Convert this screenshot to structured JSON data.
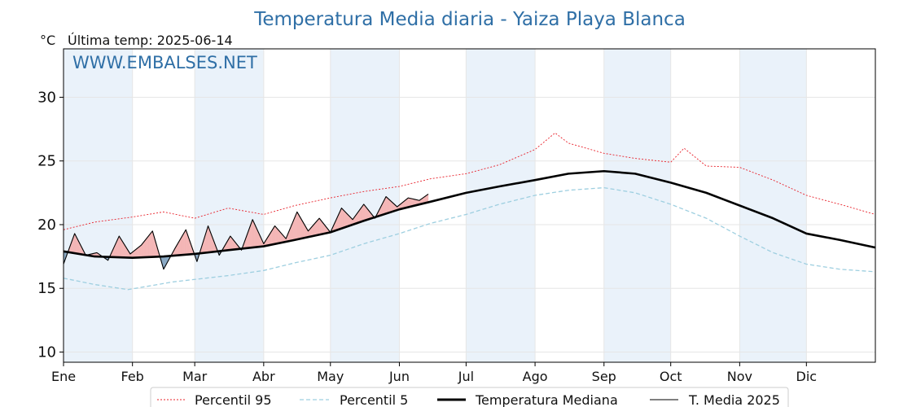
{
  "chart_data": {
    "type": "line",
    "title": "Temperatura Media diaria - Yaiza Playa Blanca",
    "unit_label": "°C",
    "last_temp_label": "Última temp: 2025-06-14",
    "watermark": "WWW.EMBALSES.NET",
    "ylim": [
      9.2,
      33.8
    ],
    "yticks": [
      10,
      15,
      20,
      25,
      30
    ],
    "xlim": [
      1,
      366
    ],
    "months": [
      {
        "label": "Ene",
        "day": 1
      },
      {
        "label": "Feb",
        "day": 32
      },
      {
        "label": "Mar",
        "day": 60
      },
      {
        "label": "Abr",
        "day": 91
      },
      {
        "label": "May",
        "day": 121
      },
      {
        "label": "Jun",
        "day": 152
      },
      {
        "label": "Jul",
        "day": 182
      },
      {
        "label": "Ago",
        "day": 213
      },
      {
        "label": "Sep",
        "day": 244
      },
      {
        "label": "Oct",
        "day": 274
      },
      {
        "label": "Nov",
        "day": 305
      },
      {
        "label": "Dic",
        "day": 335
      }
    ],
    "shaded_month_indices": [
      0,
      2,
      4,
      6,
      8,
      10
    ],
    "legend_position": "bottom",
    "colors": {
      "p95": "#e8202a",
      "p5": "#9ecfe0",
      "median": "#000000",
      "current": "#000000",
      "above_fill": "#f4b6b6",
      "below_fill": "#8aa9c4",
      "title": "#2f6fa6",
      "month_band": "#eaf2fa",
      "grid": "#e6e6e6"
    },
    "series": [
      {
        "key": "p95",
        "name": "Percentil 95",
        "style": "dotted",
        "x": [
          1,
          15,
          32,
          46,
          60,
          75,
          91,
          105,
          121,
          136,
          152,
          166,
          182,
          197,
          213,
          222,
          228,
          244,
          258,
          274,
          280,
          290,
          305,
          320,
          335,
          350,
          366
        ],
        "y": [
          19.6,
          20.2,
          20.6,
          21.0,
          20.5,
          21.3,
          20.8,
          21.5,
          22.1,
          22.6,
          23.0,
          23.6,
          24.0,
          24.7,
          25.9,
          27.2,
          26.4,
          25.6,
          25.2,
          24.9,
          26.0,
          24.6,
          24.5,
          23.5,
          22.3,
          21.6,
          20.8
        ]
      },
      {
        "key": "p5",
        "name": "Percentil 5",
        "style": "dashed",
        "x": [
          1,
          15,
          30,
          40,
          50,
          60,
          75,
          91,
          105,
          121,
          136,
          152,
          166,
          182,
          197,
          213,
          228,
          244,
          258,
          274,
          290,
          305,
          320,
          335,
          350,
          366
        ],
        "y": [
          15.8,
          15.3,
          14.9,
          15.2,
          15.5,
          15.7,
          16.0,
          16.4,
          17.0,
          17.6,
          18.5,
          19.3,
          20.1,
          20.8,
          21.6,
          22.3,
          22.7,
          22.9,
          22.5,
          21.6,
          20.5,
          19.1,
          17.8,
          16.9,
          16.5,
          16.3
        ]
      },
      {
        "key": "median",
        "name": "Temperatura Mediana",
        "style": "solid-thick",
        "x": [
          1,
          15,
          32,
          46,
          60,
          75,
          91,
          105,
          121,
          136,
          152,
          166,
          182,
          197,
          213,
          228,
          244,
          258,
          274,
          290,
          305,
          320,
          335,
          350,
          366
        ],
        "y": [
          17.9,
          17.5,
          17.4,
          17.5,
          17.7,
          18.0,
          18.3,
          18.8,
          19.4,
          20.3,
          21.2,
          21.8,
          22.5,
          23.0,
          23.5,
          24.0,
          24.2,
          24.0,
          23.3,
          22.5,
          21.5,
          20.5,
          19.3,
          18.8,
          18.2
        ]
      },
      {
        "key": "current",
        "name": "T. Media 2025",
        "style": "solid-thin",
        "x": [
          1,
          6,
          11,
          16,
          21,
          26,
          31,
          36,
          41,
          46,
          51,
          56,
          61,
          66,
          71,
          76,
          81,
          86,
          91,
          96,
          101,
          106,
          111,
          116,
          121,
          126,
          131,
          136,
          141,
          146,
          151,
          156,
          161,
          165
        ],
        "y": [
          16.9,
          19.3,
          17.6,
          17.8,
          17.2,
          19.1,
          17.7,
          18.4,
          19.5,
          16.5,
          18.1,
          19.6,
          17.1,
          19.9,
          17.6,
          19.1,
          18.0,
          20.4,
          18.5,
          19.9,
          18.9,
          21.0,
          19.5,
          20.5,
          19.4,
          21.3,
          20.4,
          21.6,
          20.5,
          22.2,
          21.4,
          22.1,
          21.9,
          22.4
        ]
      }
    ]
  }
}
